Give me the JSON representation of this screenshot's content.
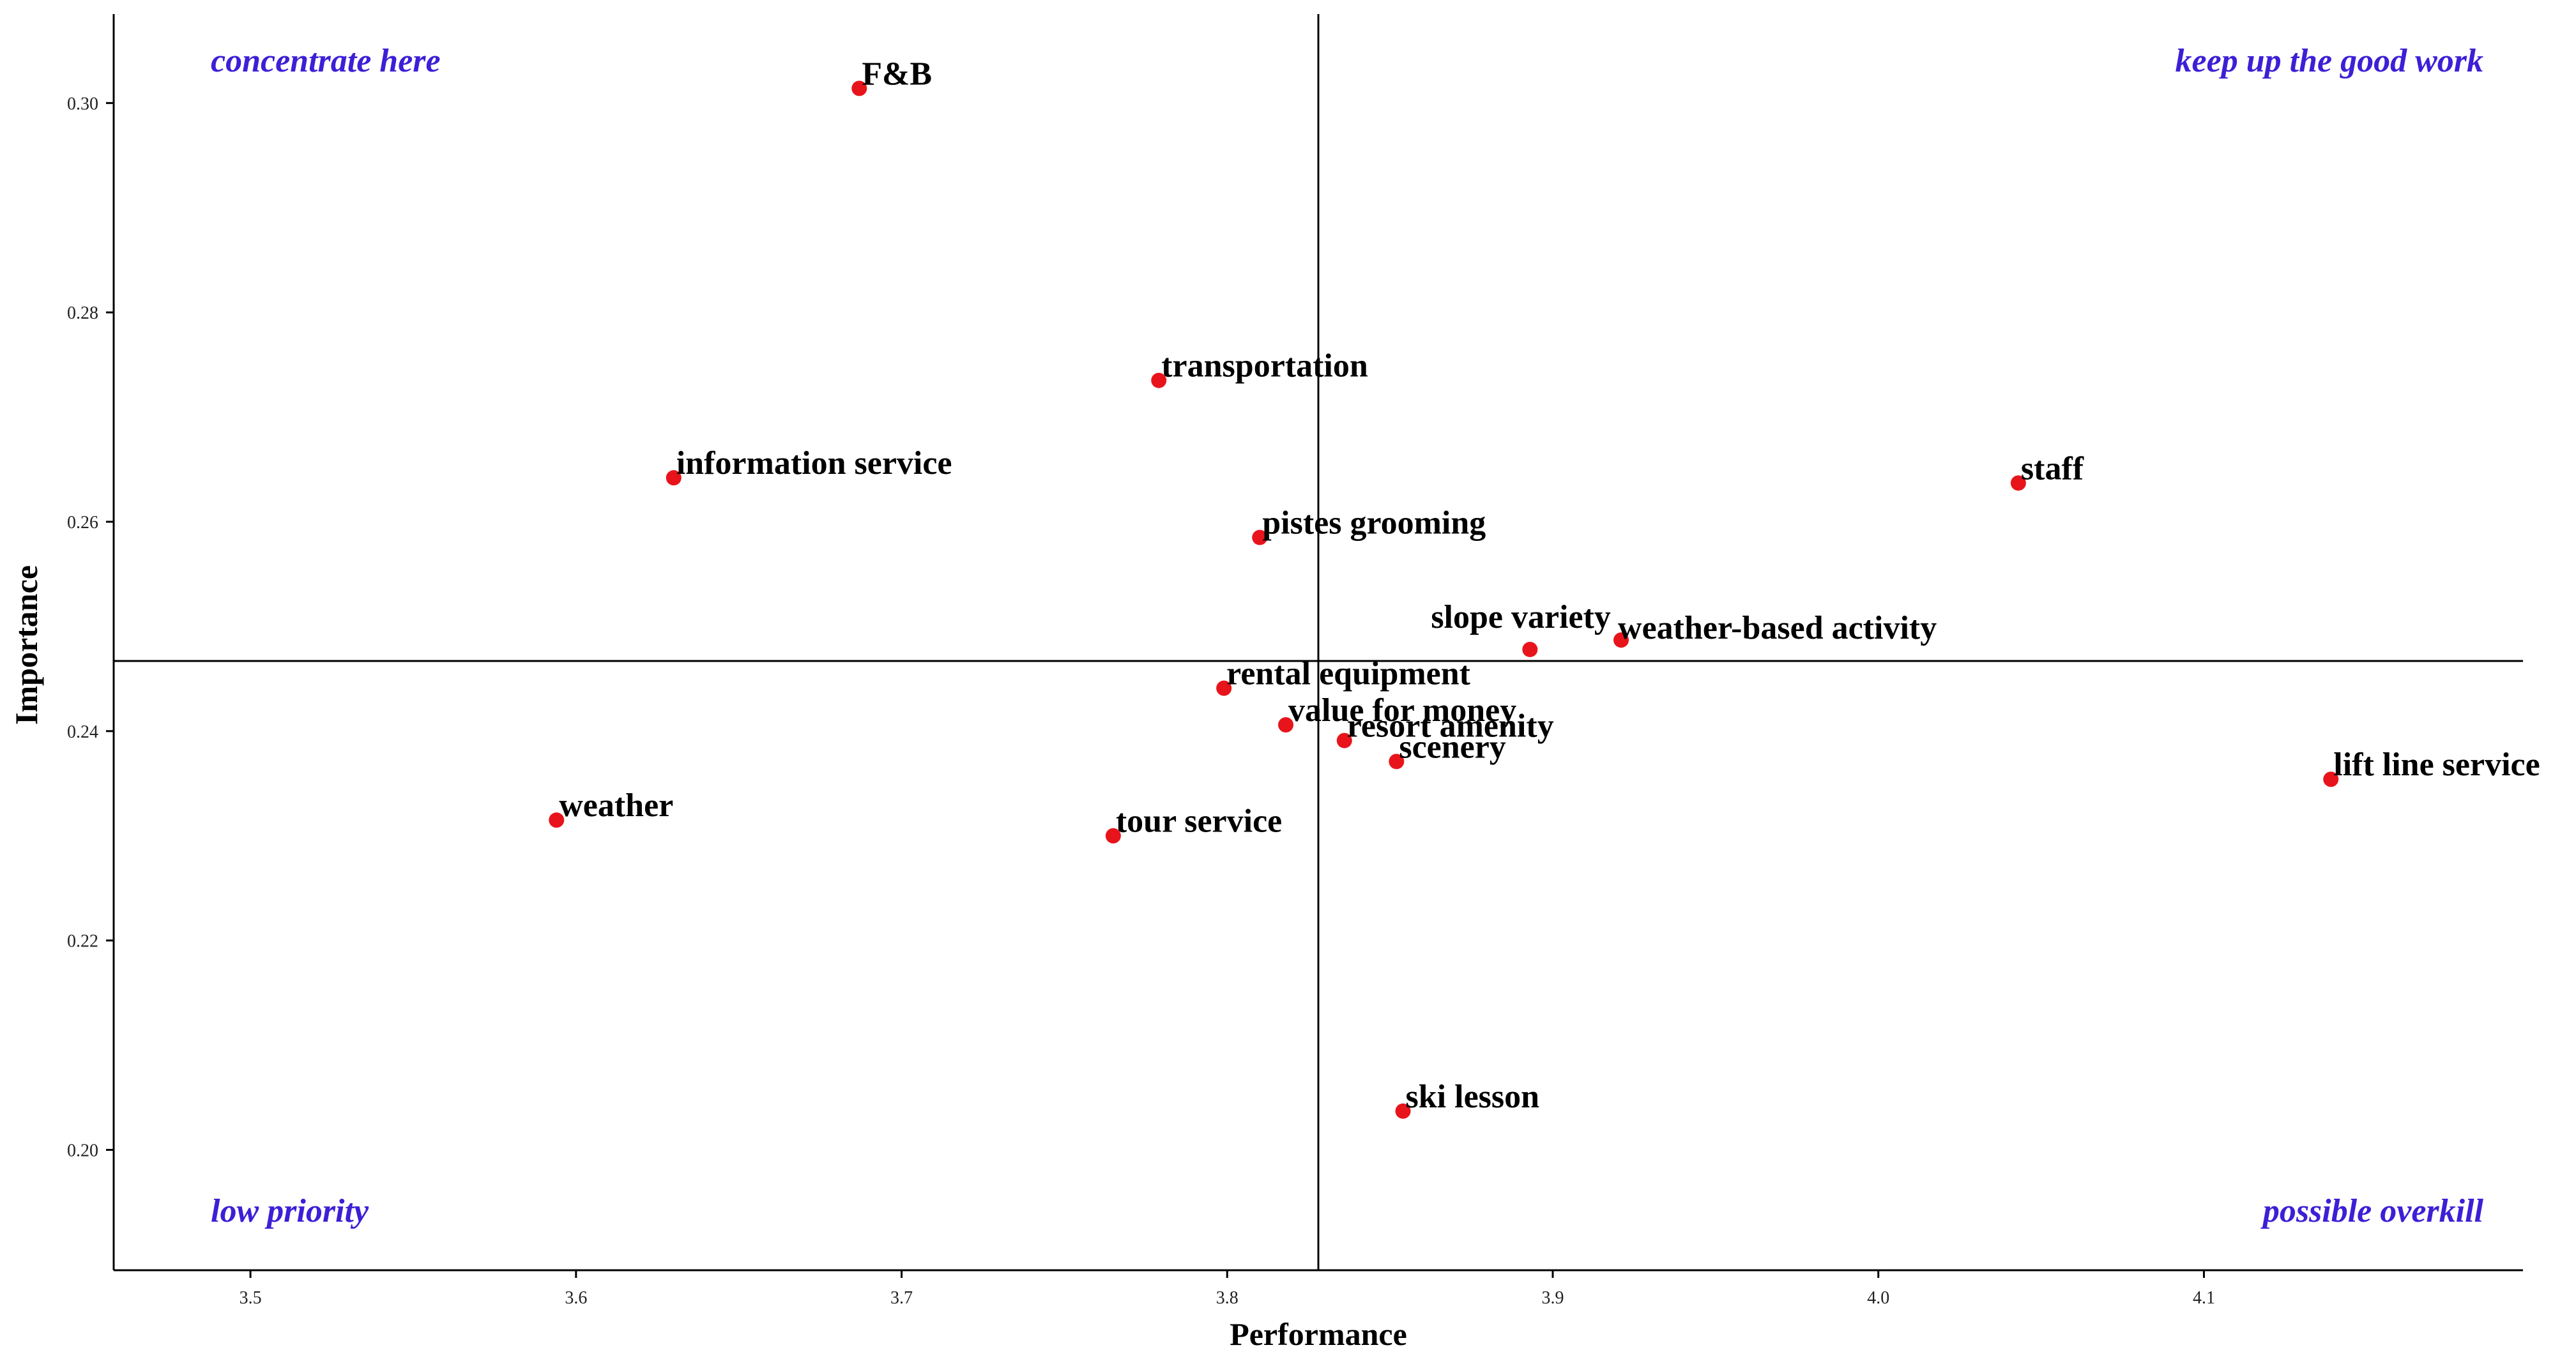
{
  "chart_data": {
    "type": "scatter",
    "title": "",
    "xlabel": "Performance",
    "ylabel": "Importance",
    "xlim": [
      3.458,
      4.198
    ],
    "ylim": [
      0.1885,
      0.3085
    ],
    "x_ticks": [
      3.5,
      3.6,
      3.7,
      3.8,
      3.9,
      4.0,
      4.1
    ],
    "x_tick_labels": [
      "3.5",
      "3.6",
      "3.7",
      "3.8",
      "3.9",
      "4.0",
      "4.1"
    ],
    "y_ticks": [
      0.2,
      0.22,
      0.24,
      0.26,
      0.28,
      0.3
    ],
    "y_tick_labels": [
      "0.20",
      "0.22",
      "0.24",
      "0.26",
      "0.28",
      "0.30"
    ],
    "grid": false,
    "marker_color": "#e8141b",
    "quadrant_label_color": "#3d1fd6",
    "reference_lines": {
      "x": 3.828,
      "y": 0.2467
    },
    "quadrant_labels": {
      "top_left": "concentrate here",
      "top_right": "keep up the good work",
      "bottom_left": "low priority",
      "bottom_right": "possible overkill"
    },
    "points": [
      {
        "label": "F&B",
        "x": 3.687,
        "y": 0.3014
      },
      {
        "label": "transportation",
        "x": 3.779,
        "y": 0.2735
      },
      {
        "label": "information service",
        "x": 3.63,
        "y": 0.2642
      },
      {
        "label": "staff",
        "x": 4.043,
        "y": 0.2637
      },
      {
        "label": "pistes grooming",
        "x": 3.81,
        "y": 0.2585
      },
      {
        "label": "slope variety",
        "x": 3.893,
        "y": 0.2478
      },
      {
        "label": "weather-based activity",
        "x": 3.921,
        "y": 0.2487
      },
      {
        "label": "rental equipment",
        "x": 3.799,
        "y": 0.2441
      },
      {
        "label": "value for money",
        "x": 3.818,
        "y": 0.2406
      },
      {
        "label": "resort amenity",
        "x": 3.836,
        "y": 0.2391
      },
      {
        "label": "scenery",
        "x": 3.852,
        "y": 0.2371
      },
      {
        "label": "lift line service",
        "x": 4.139,
        "y": 0.2354
      },
      {
        "label": "weather",
        "x": 3.594,
        "y": 0.2315
      },
      {
        "label": "tour service",
        "x": 3.765,
        "y": 0.23
      },
      {
        "label": "ski lesson",
        "x": 3.854,
        "y": 0.2037
      }
    ]
  }
}
